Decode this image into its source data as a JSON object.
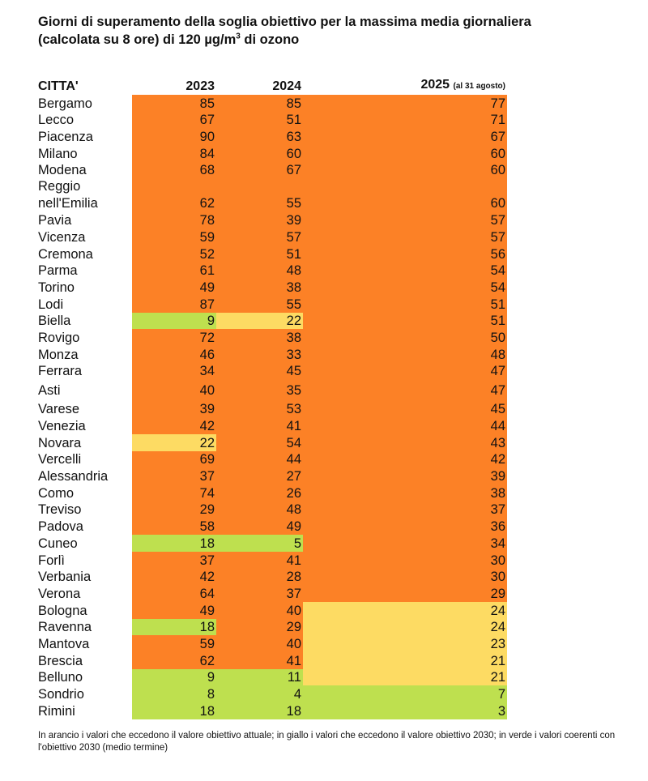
{
  "title_line1": "Giorni di superamento della soglia obiettivo per la massima media giornaliera",
  "title_line2_pre": "(calcolata su 8 ore) di 120  µg/m",
  "title_sup": "3",
  "title_line2_post": " di ozono",
  "headers": {
    "city": "CITTA'",
    "y2023": "2023",
    "y2024": "2024",
    "y2025": "2025",
    "y2025_note": "(al 31 agosto)"
  },
  "colors": {
    "o": "#fc8126",
    "y": "#fddb63",
    "g": "#bee04f"
  },
  "rows": [
    {
      "city": "Bergamo",
      "v": [
        "85",
        "85",
        "77"
      ],
      "c": [
        "o",
        "o",
        "o"
      ]
    },
    {
      "city": "Lecco",
      "v": [
        "67",
        "51",
        "71"
      ],
      "c": [
        "o",
        "o",
        "o"
      ]
    },
    {
      "city": "Piacenza",
      "v": [
        "90",
        "63",
        "67"
      ],
      "c": [
        "o",
        "o",
        "o"
      ]
    },
    {
      "city": "Milano",
      "v": [
        "84",
        "60",
        "60"
      ],
      "c": [
        "o",
        "o",
        "o"
      ]
    },
    {
      "city": "Modena",
      "v": [
        "68",
        "67",
        "60"
      ],
      "c": [
        "o",
        "o",
        "o"
      ]
    },
    {
      "city": "Reggio nell'Emilia",
      "v": [
        "62",
        "55",
        "60"
      ],
      "c": [
        "o",
        "o",
        "o"
      ]
    },
    {
      "city": "Pavia",
      "v": [
        "78",
        "39",
        "57"
      ],
      "c": [
        "o",
        "o",
        "o"
      ]
    },
    {
      "city": "Vicenza",
      "v": [
        "59",
        "57",
        "57"
      ],
      "c": [
        "o",
        "o",
        "o"
      ]
    },
    {
      "city": "Cremona",
      "v": [
        "52",
        "51",
        "56"
      ],
      "c": [
        "o",
        "o",
        "o"
      ]
    },
    {
      "city": "Parma",
      "v": [
        "61",
        "48",
        "54"
      ],
      "c": [
        "o",
        "o",
        "o"
      ]
    },
    {
      "city": "Torino",
      "v": [
        "49",
        "38",
        "54"
      ],
      "c": [
        "o",
        "o",
        "o"
      ]
    },
    {
      "city": "Lodi",
      "v": [
        "87",
        "55",
        "51"
      ],
      "c": [
        "o",
        "o",
        "o"
      ]
    },
    {
      "city": "Biella",
      "v": [
        "9",
        "22",
        "51"
      ],
      "c": [
        "g",
        "y",
        "o"
      ]
    },
    {
      "city": "Rovigo",
      "v": [
        "72",
        "38",
        "50"
      ],
      "c": [
        "o",
        "o",
        "o"
      ]
    },
    {
      "city": "Monza",
      "v": [
        "46",
        "33",
        "48"
      ],
      "c": [
        "o",
        "o",
        "o"
      ]
    },
    {
      "city": "Ferrara",
      "v": [
        "34",
        "45",
        "47"
      ],
      "c": [
        "o",
        "o",
        "o"
      ]
    },
    {
      "city": "Asti",
      "v": [
        "40",
        "35",
        "47"
      ],
      "c": [
        "o",
        "o",
        "o"
      ]
    },
    {
      "city": "Varese",
      "v": [
        "39",
        "53",
        "45"
      ],
      "c": [
        "o",
        "o",
        "o"
      ]
    },
    {
      "city": "Venezia",
      "v": [
        "42",
        "41",
        "44"
      ],
      "c": [
        "o",
        "o",
        "o"
      ]
    },
    {
      "city": "Novara",
      "v": [
        "22",
        "54",
        "43"
      ],
      "c": [
        "y",
        "o",
        "o"
      ]
    },
    {
      "city": "Vercelli",
      "v": [
        "69",
        "44",
        "42"
      ],
      "c": [
        "o",
        "o",
        "o"
      ]
    },
    {
      "city": "Alessandria",
      "v": [
        "37",
        "27",
        "39"
      ],
      "c": [
        "o",
        "o",
        "o"
      ]
    },
    {
      "city": "Como",
      "v": [
        "74",
        "26",
        "38"
      ],
      "c": [
        "o",
        "o",
        "o"
      ]
    },
    {
      "city": "Treviso",
      "v": [
        "29",
        "48",
        "37"
      ],
      "c": [
        "o",
        "o",
        "o"
      ]
    },
    {
      "city": "Padova",
      "v": [
        "58",
        "49",
        "36"
      ],
      "c": [
        "o",
        "o",
        "o"
      ]
    },
    {
      "city": "Cuneo",
      "v": [
        "18",
        "5",
        "34"
      ],
      "c": [
        "g",
        "g",
        "o"
      ]
    },
    {
      "city": "Forlì",
      "v": [
        "37",
        "41",
        "30"
      ],
      "c": [
        "o",
        "o",
        "o"
      ]
    },
    {
      "city": "Verbania",
      "v": [
        "42",
        "28",
        "30"
      ],
      "c": [
        "o",
        "o",
        "o"
      ]
    },
    {
      "city": "Verona",
      "v": [
        "64",
        "37",
        "29"
      ],
      "c": [
        "o",
        "o",
        "o"
      ]
    },
    {
      "city": "Bologna",
      "v": [
        "49",
        "40",
        "24"
      ],
      "c": [
        "o",
        "o",
        "y"
      ]
    },
    {
      "city": "Ravenna",
      "v": [
        "18",
        "29",
        "24"
      ],
      "c": [
        "g",
        "o",
        "y"
      ]
    },
    {
      "city": "Mantova",
      "v": [
        "59",
        "40",
        "23"
      ],
      "c": [
        "o",
        "o",
        "y"
      ]
    },
    {
      "city": "Brescia",
      "v": [
        "62",
        "41",
        "21"
      ],
      "c": [
        "o",
        "o",
        "y"
      ]
    },
    {
      "city": "Belluno",
      "v": [
        "9",
        "11",
        "21"
      ],
      "c": [
        "g",
        "g",
        "y"
      ]
    },
    {
      "city": "Sondrio",
      "v": [
        "8",
        "4",
        "7"
      ],
      "c": [
        "g",
        "g",
        "g"
      ]
    },
    {
      "city": "Rimini",
      "v": [
        "18",
        "18",
        "3"
      ],
      "c": [
        "g",
        "g",
        "g"
      ]
    }
  ],
  "note": "In arancio i valori che eccedono il valore obiettivo attuale; in giallo i valori che eccedono il valore obiettivo 2030; in verde i valori coerenti con l'obiettivo 2030 (medio termine)"
}
